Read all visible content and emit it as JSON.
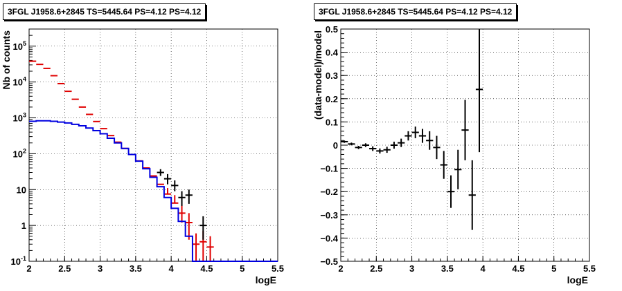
{
  "colors": {
    "data": "#000000",
    "model_points": "#e00000",
    "model_curve": "#0000e0",
    "grid": "#000000"
  },
  "chart_data": [
    {
      "type": "line",
      "title": "3FGL J1958.6+2845 TS=5445.64 PS=4.12 PS=4.12",
      "xlabel": "logE",
      "ylabel": "Nb of counts",
      "xlim": [
        2,
        5.5
      ],
      "ylim": [
        0.1,
        300000
      ],
      "yscale": "log",
      "grid": true,
      "xticks": [
        "2",
        "2.5",
        "3",
        "3.5",
        "4",
        "4.5",
        "5",
        "5.5"
      ],
      "yticks": [
        "10^-1",
        "1",
        "10",
        "10^2",
        "10^3",
        "10^4",
        "10^5"
      ],
      "series": [
        {
          "color": "#e00000",
          "style": "errorbar",
          "x": [
            2.05,
            2.15,
            2.25,
            2.35,
            2.45,
            2.55,
            2.65,
            2.75,
            2.85,
            2.95,
            3.05,
            3.15,
            3.25,
            3.35,
            3.45,
            3.55,
            3.65,
            3.75,
            3.85,
            3.95,
            4.05,
            4.15,
            4.25,
            4.35,
            4.45,
            4.55
          ],
          "y": [
            38000,
            31000,
            24000,
            15000,
            9000,
            5500,
            3300,
            2000,
            1250,
            790,
            500,
            320,
            210,
            140,
            95,
            63,
            40,
            24,
            14,
            7.5,
            4.2,
            2.2,
            1.2,
            0.3,
            0.35,
            0.25
          ],
          "ylow": [
            38000,
            31000,
            24000,
            15000,
            9000,
            5500,
            3300,
            2000,
            1250,
            790,
            500,
            320,
            210,
            140,
            95,
            63,
            40,
            24,
            14,
            7.5,
            4.2,
            1.2,
            0.4,
            0.1,
            0.1,
            0.1
          ],
          "yhigh": [
            38000,
            31000,
            24000,
            15000,
            9000,
            5500,
            3300,
            2000,
            1250,
            790,
            500,
            320,
            210,
            140,
            95,
            63,
            40,
            24,
            14,
            11,
            7,
            3.8,
            2.2,
            0.6,
            0.7,
            0.5
          ]
        },
        {
          "color": "#0000e0",
          "style": "step",
          "x": [
            2.0,
            2.1,
            2.2,
            2.3,
            2.4,
            2.5,
            2.6,
            2.7,
            2.8,
            2.9,
            3.0,
            3.1,
            3.2,
            3.3,
            3.4,
            3.5,
            3.6,
            3.7,
            3.8,
            3.9,
            4.0,
            4.1,
            4.2,
            4.3,
            4.4,
            5.5
          ],
          "y": [
            800,
            830,
            830,
            800,
            760,
            720,
            660,
            600,
            520,
            440,
            360,
            270,
            200,
            140,
            95,
            62,
            38,
            22,
            12,
            6,
            3,
            1.3,
            0.5,
            0.1,
            0.1,
            0.1
          ]
        },
        {
          "color": "#000000",
          "style": "errorbar",
          "x": [
            3.85,
            3.95,
            4.05,
            4.15,
            4.25,
            4.45
          ],
          "y": [
            30,
            20,
            13,
            6,
            7,
            1
          ],
          "ylow": [
            24,
            14,
            9,
            3.5,
            4,
            0.4
          ],
          "yhigh": [
            37,
            27,
            18,
            9,
            10,
            1.8
          ]
        }
      ]
    },
    {
      "type": "scatter",
      "title": "3FGL J1958.6+2845 TS=5445.64 PS=4.12 PS=4.12",
      "xlabel": "logE",
      "ylabel": "(data-model)/model",
      "xlim": [
        2,
        5.5
      ],
      "ylim": [
        -0.5,
        0.5
      ],
      "grid": true,
      "xticks": [
        "2",
        "2.5",
        "3",
        "3.5",
        "4",
        "4.5",
        "5",
        "5.5"
      ],
      "yticks": [
        "-0.5",
        "-0.4",
        "-0.3",
        "-0.2",
        "-0.1",
        "0",
        "0.1",
        "0.2",
        "0.3",
        "0.4",
        "0.5"
      ],
      "series": [
        {
          "color": "#000000",
          "style": "errorbar",
          "x": [
            2.05,
            2.15,
            2.25,
            2.35,
            2.45,
            2.55,
            2.65,
            2.75,
            2.85,
            2.95,
            3.05,
            3.15,
            3.25,
            3.35,
            3.45,
            3.55,
            3.65,
            3.75,
            3.85,
            3.95
          ],
          "y": [
            0.015,
            0.005,
            -0.01,
            0.0,
            -0.015,
            -0.025,
            -0.02,
            0.0,
            0.01,
            0.04,
            0.055,
            0.04,
            0.02,
            -0.01,
            -0.085,
            -0.2,
            -0.105,
            0.065,
            -0.215,
            0.24
          ],
          "err": [
            0.005,
            0.006,
            0.007,
            0.008,
            0.01,
            0.011,
            0.013,
            0.015,
            0.018,
            0.02,
            0.025,
            0.03,
            0.04,
            0.05,
            0.06,
            0.07,
            0.085,
            0.13,
            0.15,
            0.27
          ]
        }
      ]
    }
  ]
}
